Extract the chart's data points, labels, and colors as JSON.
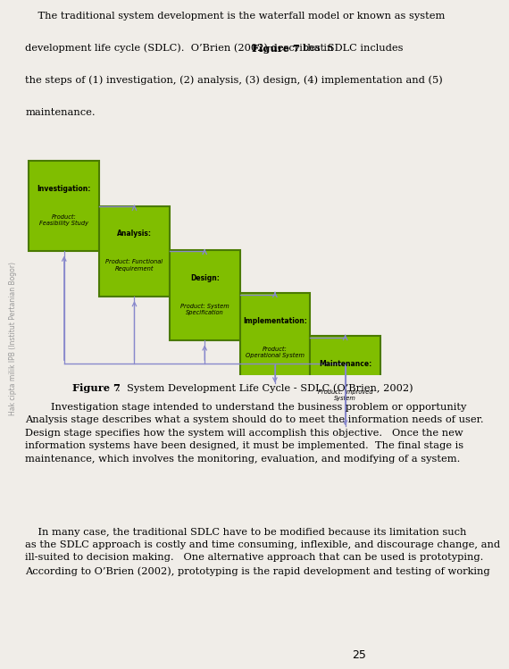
{
  "bg_color": "#f0ede8",
  "diagram_bg": "#e8e5df",
  "box_green": "#80be00",
  "box_border": "#4a7a00",
  "arrow_color": "#8888cc",
  "boxes": [
    {
      "title": "Investigation:",
      "subtitle": "Product:\nFeasibility Study"
    },
    {
      "title": "Analysis:",
      "subtitle": "Product: Functional\nRequirement"
    },
    {
      "title": "Design:",
      "subtitle": "Product: System\nSpecification"
    },
    {
      "title": "Implementation:",
      "subtitle": "Product:\nOperational System"
    },
    {
      "title": "Maintenance:",
      "subtitle": "Product: Improved\nSystem"
    }
  ],
  "caption_bold": "Figure 7",
  "caption_normal": ".  System Development Life Cycle - SDLC (O’Brien, 2002)",
  "para_top_1": "    The traditional system development is the waterfall model or known as system",
  "para_top_2": "\ndevelopment life cycle (SDLC).  O’Brien (2002) describes in ",
  "para_top_bold": "Figure 7",
  "para_top_3": " that SDLC includes",
  "para_top_4": "\nthe steps of (1) investigation, (2) analysis, (3) design, (4) implementation and (5)\n\nmaintenance.",
  "para_mid": "        Investigation stage intended to understand the business problem or opportunity\nAnalysis stage describes what a system should do to meet the information needs of user.\nDesign stage specifies how the system will accomplish this objective.   Once the new\ninformation systems have been designed, it must be implemented.  The final stage is\nmaintenance, which involves the monitoring, evaluation, and modifying of a system.",
  "para_bot": "    In many case, the traditional SDLC have to be modified because its limitation such\nas the SDLC approach is costly and time consuming, inflexible, and discourage change, and\nill-suited to decision making.   One alternative approach that can be used is prototyping.\nAccording to O’Brien (2002), prototyping is the rapid development and testing of working",
  "watermark": "Hak cipta milik IPB (Institut Pertanian Bogor)",
  "page_num": "25"
}
